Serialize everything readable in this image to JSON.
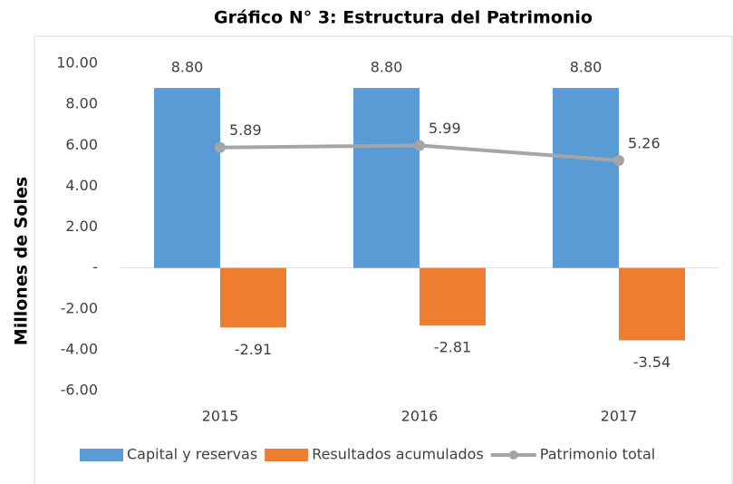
{
  "chart_data": {
    "type": "bar",
    "title": "Gráfico N° 3: Estructura del Patrimonio",
    "y_label": "Millones de Soles",
    "categories": [
      "2015",
      "2016",
      "2017"
    ],
    "series": [
      {
        "name": "Capital y reservas",
        "color": "#5b9bd5",
        "values": [
          8.8,
          8.8,
          8.8
        ],
        "value_labels": [
          "8.80",
          "8.80",
          "8.80"
        ]
      },
      {
        "name": "Resultados acumulados",
        "color": "#ed7d31",
        "values": [
          -2.91,
          -2.81,
          -3.54
        ],
        "value_labels": [
          "-2.91",
          "-2.81",
          "-3.54"
        ]
      },
      {
        "name": "Patrimonio total",
        "type": "line",
        "color": "#a5a5a5",
        "values": [
          5.89,
          5.99,
          5.26
        ],
        "value_labels": [
          "5.89",
          "5.99",
          "5.26"
        ]
      }
    ],
    "ylim": [
      -6,
      10
    ],
    "yticks": [
      {
        "value": 10,
        "label": "10.00"
      },
      {
        "value": 8,
        "label": "8.00"
      },
      {
        "value": 6,
        "label": "6.00"
      },
      {
        "value": 4,
        "label": "4.00"
      },
      {
        "value": 2,
        "label": "2.00"
      },
      {
        "value": 0,
        "label": "-"
      },
      {
        "value": -2,
        "label": "-2.00"
      },
      {
        "value": -4,
        "label": "-4.00"
      },
      {
        "value": -6,
        "label": "-6.00"
      }
    ],
    "grid": false,
    "legend": "bottom"
  }
}
